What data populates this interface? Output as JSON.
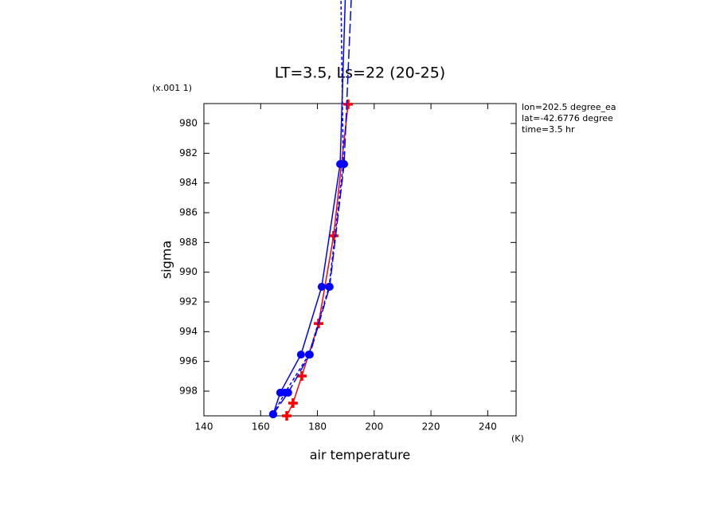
{
  "chart_data": {
    "type": "line",
    "title": "LT=3.5, Ls=22 (20-25)",
    "x_label": "air temperature",
    "y_label": "sigma",
    "x_unit": "(K)",
    "y_unit": "(x.001 1)",
    "annotations": [
      "lon=202.5 degree_ea",
      "lat=-42.6776 degree",
      "time=3.5 hr"
    ],
    "xlim": [
      140,
      250
    ],
    "xticks": [
      140,
      160,
      180,
      200,
      220,
      240
    ],
    "ylim": [
      978.66,
      999.66
    ],
    "y_inverted": true,
    "yticks": [
      980,
      982,
      984,
      986,
      988,
      990,
      992,
      994,
      996,
      998
    ],
    "series": [
      {
        "color": "#ff0000",
        "dash": "solid",
        "marker": "plus",
        "x": [
          190.8,
          185.7,
          180.4,
          174.5,
          171.4,
          169.2
        ],
        "values": [
          978.71,
          987.55,
          993.45,
          996.98,
          998.8,
          999.66
        ]
      },
      {
        "color": "#0000ff",
        "dash": "solid",
        "marker": "circle",
        "x": [
          164.4,
          166.9,
          174.2,
          181.5,
          188.0,
          189.8
        ],
        "values": [
          999.55,
          998.1,
          995.54,
          990.98,
          982.73,
          971.7
        ]
      },
      {
        "color": "#0000ff",
        "dash": "short",
        "marker": "circle",
        "x": [
          164.4,
          168.6,
          177.0,
          184.1,
          189.1,
          188.3
        ],
        "values": [
          999.55,
          998.1,
          995.54,
          990.98,
          982.73,
          971.7
        ]
      },
      {
        "color": "#0000ff",
        "dash": "long",
        "marker": "circle",
        "x": [
          164.4,
          169.7,
          177.3,
          184.3,
          189.4,
          191.9
        ],
        "values": [
          999.55,
          998.1,
          995.54,
          990.98,
          982.73,
          971.7
        ]
      }
    ]
  }
}
